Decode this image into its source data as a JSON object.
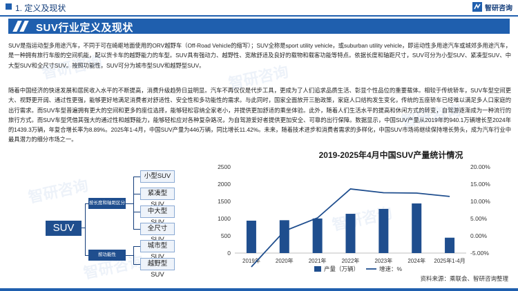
{
  "header": {
    "section_title": "1. 定义及现状",
    "logo_text": "智研咨询",
    "logo_icon": "zhiyan-logo-icon"
  },
  "banner": {
    "title": "SUV行业定义及现状"
  },
  "body": {
    "para1": "SUV是指运动型多用途汽车，不同于可在崎岖地面使用的ORV越野车（Off-Road Vehicle的缩写）；SUV全称是sport utility vehicle，或suburban utility vehicle，即运动性多用途汽车或城郊多用途汽车，是一种拥有旅行车般的空间机能，配以货卡车的越野能力的车型。SUV具有强动力、越野性、宽敞舒适及良好的载物和载客功能等特点。依据长度和轴距尺寸，SUV可分为小型SUV、紧凑型SUV、中大型SUV和全尺寸SUV。按照功能性，SUV可分为城市型SUV和越野型SUV。",
    "para2": "随着中国经济的快速发展和居民收入水平的不断提高，消费升级趋势日益明显。汽车不再仅仅是代步工具，更成为了人们追求品质生活、彰显个性品位的重要载体。相较于传统轿车，SUV车型空间更大、视野更开阔、通过性更强，能够更好地满足消费者对舒适性、安全性和多功能性的需求。与此同时，国家全面放开三胎政策，家庭人口结构发生变化，传统的五座轿车已经难以满足多人口家庭的出行需求。而SUV车型普遍拥有更大的空间和更多的座位选择，能够轻松容纳全家老小，并提供更加舒适的乘坐体验。此外，随着人们生活水平的提高和休闲方式的转变，自驾游逐渐成为一种流行的旅行方式。而SUV车型凭借其强大的通过性和越野能力，能够轻松应对各种复杂路况，为自驾游爱好者提供更加安全、可靠的出行保障。数据显示，中国SUV产量从2019年的940.1万辆增长至2024年的1439.3万辆，年复合增长率为8.89%。2025年1-4月，中国SUV产量为446万辆，同比增长11.42%。未来，随着技术进步和消费者需求的多样化，中国SUV市场将继续保持增长势头，成为汽车行业中最具潜力的细分市场之一。"
  },
  "diagram": {
    "root": "SUV",
    "branches": [
      {
        "label": "按长度和轴距区分",
        "leaves": [
          "小型SUV",
          "紧凑型SUV",
          "中大型SUV",
          "全尺寸SUV"
        ]
      },
      {
        "label": "按功能性",
        "leaves": [
          "城市型SUV",
          "越野型SUV"
        ]
      }
    ]
  },
  "chart_data": {
    "type": "bar",
    "title": "2019-2025年4月中国SUV产量统计情况",
    "categories": [
      "2019年",
      "2020年",
      "2021年",
      "2022年",
      "2023年",
      "2024年",
      "2025年1-4月"
    ],
    "series": [
      {
        "name": "产量（万辆）",
        "type": "bar",
        "axis": "left",
        "color": "#1f4e8e",
        "values": [
          940.1,
          953,
          1003,
          1139,
          1281,
          1439.3,
          446
        ]
      },
      {
        "name": "增速：%",
        "type": "line",
        "axis": "right",
        "color": "#1f4e8e",
        "values": [
          -9.0,
          1.4,
          5.2,
          13.6,
          12.5,
          12.4,
          11.42
        ]
      }
    ],
    "left_axis": {
      "ticks": [
        "0",
        "500",
        "1000",
        "1500",
        "2000",
        "2500"
      ],
      "ylim": [
        0,
        2500
      ]
    },
    "right_axis": {
      "ticks": [
        "-5.00%",
        "0.00%",
        "5.00%",
        "10.00%",
        "15.00%",
        "20.00%"
      ],
      "ylim": [
        -5,
        20
      ]
    },
    "legend_position": "bottom",
    "grid": false
  },
  "source": "资料来源：乘联会、智研咨询整理",
  "watermarks": [
    "智研咨询",
    "智研咨询",
    "智研咨询",
    "智研咨询",
    "智研咨询",
    "智研咨询"
  ]
}
